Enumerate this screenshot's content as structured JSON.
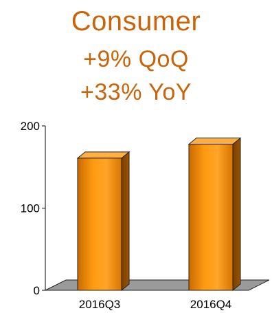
{
  "header": {
    "title": "Consumer",
    "qoq": "+9%  QoQ",
    "yoy": "+33%  YoY"
  },
  "colors": {
    "title": "#c8640a",
    "bar_front": "#ff9200",
    "bar_side": "#8a4a00",
    "bar_top": "#ffb040",
    "floor": "#9a9a9a"
  },
  "chart_data": {
    "type": "bar",
    "title": "Consumer",
    "categories": [
      "2016Q3",
      "2016Q4"
    ],
    "values": [
      180,
      197
    ],
    "ylim": [
      0,
      200
    ],
    "yticks": [
      0,
      100,
      200
    ],
    "ytick_labels": [
      "0",
      "100",
      "200"
    ],
    "grid": false,
    "legend": "none",
    "style": "3d"
  }
}
